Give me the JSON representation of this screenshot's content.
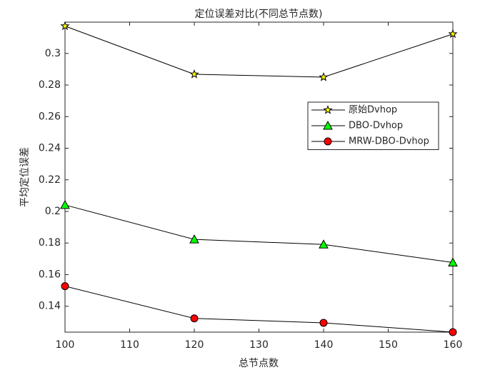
{
  "chart_data": {
    "type": "line",
    "title": "定位误差对比(不同总节点数)",
    "x_label": "总节点数",
    "y_label": "平均定位误差",
    "x": [
      100,
      120,
      140,
      160
    ],
    "series": [
      {
        "name": "原始Dvhop",
        "color": "#ffff00",
        "marker": "star",
        "values": [
          0.3173,
          0.2868,
          0.285,
          0.3123
        ]
      },
      {
        "name": "DBO-Dvhop",
        "color": "#00ff00",
        "marker": "triangle",
        "values": [
          0.2041,
          0.1823,
          0.1791,
          0.1677
        ]
      },
      {
        "name": "MRW-DBO-Dvhop",
        "color": "#ff0000",
        "marker": "circle",
        "values": [
          0.1527,
          0.1323,
          0.1295,
          0.1236
        ]
      }
    ],
    "xlim": [
      100,
      160
    ],
    "xticks": [
      100,
      110,
      120,
      130,
      140,
      150,
      160
    ],
    "ylim": [
      0.1236,
      0.3198
    ],
    "yticks": [
      0.14,
      0.16,
      0.18,
      0.2,
      0.22,
      0.24,
      0.26,
      0.28,
      0.3
    ],
    "legend_position": "upper-right"
  }
}
